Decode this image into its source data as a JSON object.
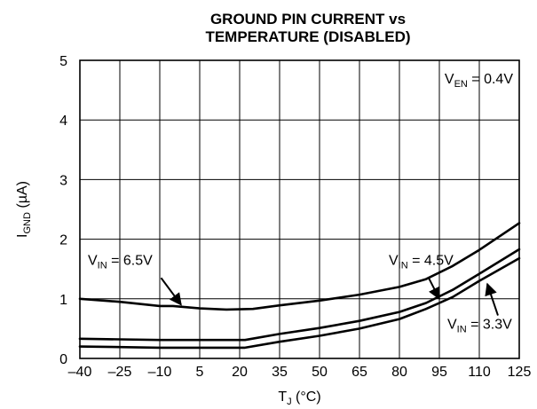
{
  "chart_data": {
    "type": "line",
    "title_lines": [
      "GROUND PIN CURRENT vs",
      "TEMPERATURE (DISABLED)"
    ],
    "xlabel": {
      "main": "T",
      "sub": "J",
      "unit": " (°C)"
    },
    "ylabel": {
      "main": "I",
      "sub": "GND",
      "unit": " (µA)"
    },
    "xlim": [
      -40,
      125
    ],
    "ylim": [
      0,
      5
    ],
    "xticks": [
      -40,
      -25,
      -10,
      5,
      20,
      35,
      50,
      65,
      80,
      95,
      110,
      125
    ],
    "xtick_labels": [
      "–40",
      "–25",
      "–10",
      "5",
      "20",
      "35",
      "50",
      "65",
      "80",
      "95",
      "110",
      "125"
    ],
    "yticks": [
      0,
      1,
      2,
      3,
      4,
      5
    ],
    "ytick_labels": [
      "0",
      "1",
      "2",
      "3",
      "4",
      "5"
    ],
    "grid": true,
    "condition": {
      "main": "V",
      "sub": "EN",
      "rest": " = 0.4V"
    },
    "series": [
      {
        "label": {
          "main": "V",
          "sub": "IN",
          "rest": " = 6.5V"
        },
        "x": [
          -40,
          -25,
          -10,
          -5,
          5,
          15,
          25,
          35,
          50,
          65,
          80,
          90,
          100,
          110,
          125
        ],
        "y": [
          1.0,
          0.95,
          0.88,
          0.88,
          0.84,
          0.82,
          0.83,
          0.89,
          0.97,
          1.07,
          1.2,
          1.33,
          1.55,
          1.82,
          2.27
        ],
        "pointer": {
          "text_at": [
            -37,
            1.57
          ],
          "arrow_from": [
            -9.5,
            1.35
          ],
          "arrow_to": [
            -2,
            0.9
          ]
        }
      },
      {
        "label": {
          "main": "V",
          "sub": "IN",
          "rest": " = 4.5V"
        },
        "x": [
          -40,
          -25,
          -10,
          5,
          20,
          22,
          35,
          50,
          65,
          80,
          90,
          100,
          110,
          125
        ],
        "y": [
          0.33,
          0.32,
          0.31,
          0.31,
          0.31,
          0.31,
          0.41,
          0.51,
          0.63,
          0.78,
          0.93,
          1.15,
          1.42,
          1.83
        ],
        "pointer": {
          "text_at": [
            76,
            1.57
          ],
          "arrow_from": [
            91,
            1.35
          ],
          "arrow_to": [
            95,
            1.0
          ]
        }
      },
      {
        "label": {
          "main": "V",
          "sub": "IN",
          "rest": " = 3.3V"
        },
        "x": [
          -40,
          -25,
          -10,
          5,
          20,
          22,
          35,
          50,
          65,
          80,
          90,
          100,
          110,
          125
        ],
        "y": [
          0.2,
          0.19,
          0.18,
          0.18,
          0.18,
          0.18,
          0.28,
          0.38,
          0.5,
          0.66,
          0.83,
          1.03,
          1.3,
          1.68
        ],
        "pointer": {
          "text_at": [
            98,
            0.5
          ],
          "arrow_from": [
            117,
            0.72
          ],
          "arrow_to": [
            113,
            1.25
          ]
        }
      }
    ]
  }
}
